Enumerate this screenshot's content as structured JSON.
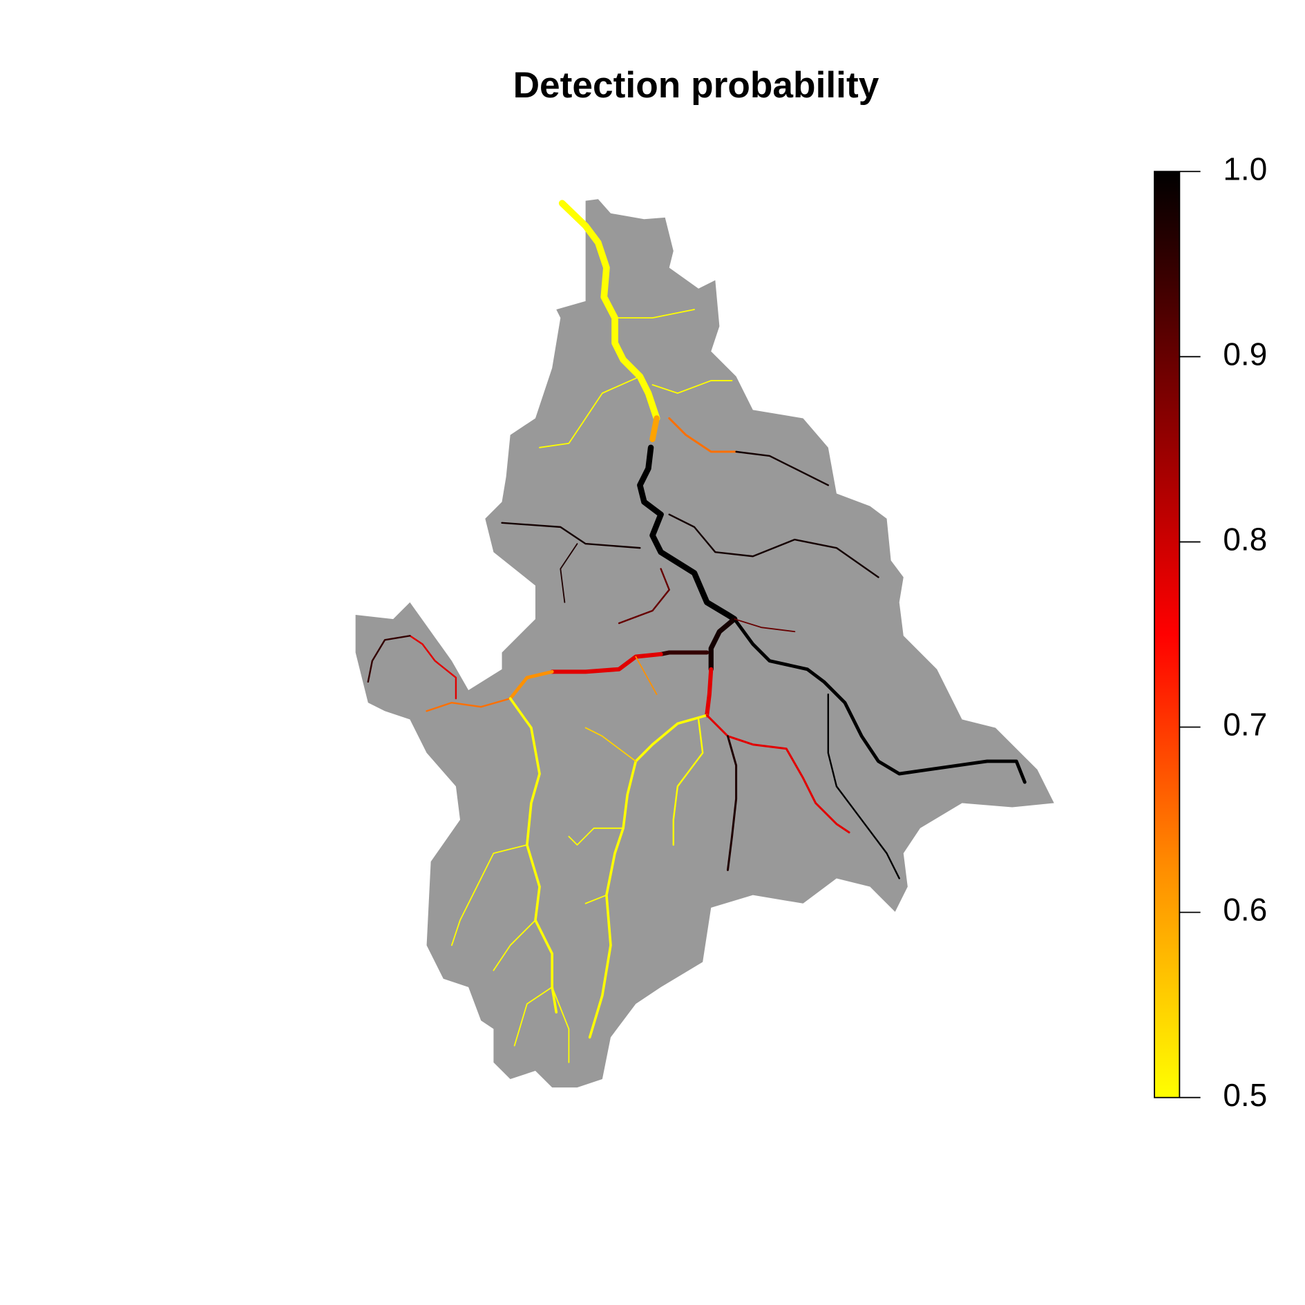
{
  "map": {
    "title": "Detection probability",
    "catchment_color": "#999999",
    "colorbar": {
      "lim": [
        0.5,
        1
      ],
      "ticks": [
        {
          "value": 1,
          "label": "1.0"
        },
        0.9,
        0.8,
        0.7,
        0.6,
        0.5
      ],
      "colors": [
        "#ffff00",
        "#ff8c00",
        "#ff0000",
        "#800000",
        "#000000"
      ]
    },
    "reaches": [
      {
        "value": 0.5
      },
      {
        "value": 0.6
      },
      {
        "value": 1.0
      },
      {
        "value": 0.98
      },
      {
        "value": 0.78
      },
      {
        "value": 0.95
      },
      {
        "value": 0.78
      },
      {
        "value": 0.62
      },
      {
        "value": 0.65
      },
      {
        "value": 0.78
      },
      {
        "value": 0.95
      },
      {
        "value": 0.5
      },
      {
        "value": 0.5
      },
      {
        "value": 0.5
      },
      {
        "value": 1.0
      },
      {
        "value": 0.78
      },
      {
        "value": 0.97
      },
      {
        "value": 0.65
      },
      {
        "value": 0.98
      },
      {
        "value": 0.98
      },
      {
        "value": 0.97
      },
      {
        "value": 0.98
      },
      {
        "value": 0.5
      },
      {
        "value": 0.5
      },
      {
        "value": 0.5
      },
      {
        "value": 0.9
      },
      {
        "value": 0.9
      },
      {
        "value": 0.5
      },
      {
        "value": 0.5
      },
      {
        "value": 0.5
      },
      {
        "value": 0.5
      },
      {
        "value": 0.5
      },
      {
        "value": 0.5
      },
      {
        "value": 0.55
      },
      {
        "value": 0.62
      },
      {
        "value": 1.0
      }
    ]
  }
}
